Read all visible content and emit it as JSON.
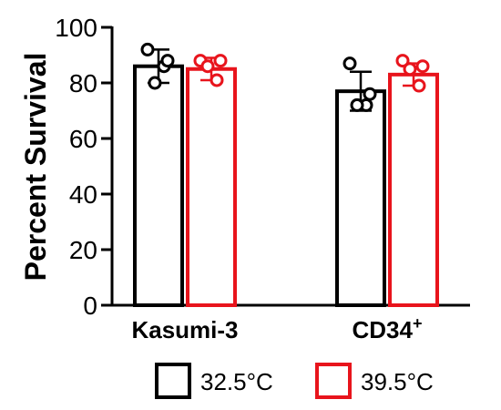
{
  "chart_data": {
    "type": "bar",
    "ylabel": "Percent Survival",
    "ylim": [
      0,
      100
    ],
    "yticks": [
      0,
      20,
      40,
      60,
      80,
      100
    ],
    "categories": [
      {
        "label": "Kasumi-3",
        "superscript": ""
      },
      {
        "label": "CD34",
        "superscript": "+"
      }
    ],
    "series": [
      {
        "name": "32.5°C",
        "color": "#000000",
        "means": [
          86,
          77
        ],
        "errors": [
          6,
          7
        ],
        "points": [
          [
            92,
            86,
            80,
            88
          ],
          [
            87,
            72,
            72,
            76
          ]
        ]
      },
      {
        "name": "39.5°C",
        "color": "#e8141c",
        "means": [
          85,
          83
        ],
        "errors": [
          4,
          4
        ],
        "points": [
          [
            88,
            81,
            86,
            88
          ],
          [
            88,
            79,
            85,
            86
          ]
        ]
      }
    ],
    "legend": "bottom"
  }
}
